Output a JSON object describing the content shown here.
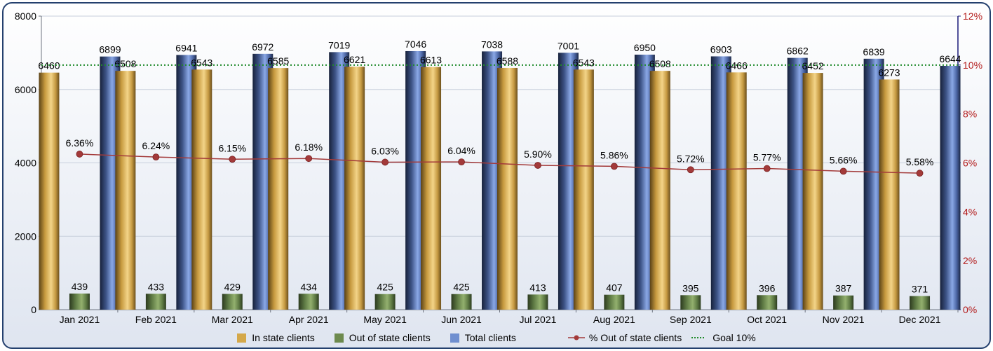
{
  "chart_data": {
    "type": "bar",
    "title": "",
    "xlabel": "",
    "ylabel": "",
    "categories": [
      "Jan 2021",
      "Feb 2021",
      "Mar 2021",
      "Apr 2021",
      "May 2021",
      "Jun 2021",
      "Jul 2021",
      "Aug 2021",
      "Sep 2021",
      "Oct 2021",
      "Nov 2021",
      "Dec 2021"
    ],
    "series": [
      {
        "name": "In state clients",
        "color": "#d4a84a",
        "values": [
          6460,
          6508,
          6543,
          6585,
          6621,
          6613,
          6588,
          6543,
          6508,
          6466,
          6452,
          6273
        ]
      },
      {
        "name": "Out of state clients",
        "color": "#6d8a4e",
        "values": [
          439,
          433,
          429,
          434,
          425,
          425,
          413,
          407,
          395,
          396,
          387,
          371
        ]
      },
      {
        "name": "Total clients",
        "color": "#6f8fd0",
        "values": [
          6899,
          6941,
          6972,
          7019,
          7046,
          7038,
          7001,
          6950,
          6903,
          6862,
          6839,
          6644
        ]
      }
    ],
    "line_series": {
      "name": "% Out of state clients",
      "color": "#a33a3a",
      "axis": "right",
      "values": [
        6.36,
        6.24,
        6.15,
        6.18,
        6.03,
        6.04,
        5.9,
        5.86,
        5.72,
        5.77,
        5.66,
        5.58
      ],
      "labels": [
        "6.36%",
        "6.24%",
        "6.15%",
        "6.18%",
        "6.03%",
        "6.04%",
        "5.90%",
        "5.86%",
        "5.72%",
        "5.77%",
        "5.66%",
        "5.58%"
      ]
    },
    "goal_line": {
      "name": "Goal 10%",
      "value": 10,
      "axis": "right",
      "color": "#1f8a2a"
    },
    "y_left": {
      "min": 0,
      "max": 8000,
      "ticks": [
        "0",
        "2000",
        "4000",
        "6000",
        "8000"
      ]
    },
    "y_right": {
      "min": 0,
      "max": 12,
      "ticks": [
        "0%",
        "2%",
        "4%",
        "6%",
        "8%",
        "10%",
        "12%"
      ],
      "color": "#b31b1b"
    },
    "grid": true,
    "legend_position": "bottom"
  }
}
